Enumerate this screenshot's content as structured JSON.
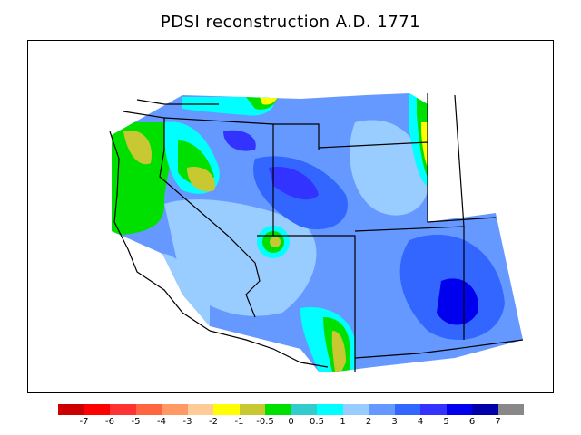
{
  "title": "PDSI reconstruction A.D. 1771",
  "legend": {
    "colors": [
      "#cc0000",
      "#ff0000",
      "#ff3333",
      "#ff6640",
      "#ff9966",
      "#ffcc99",
      "#ffff00",
      "#c8c832",
      "#00e000",
      "#33cccc",
      "#00ffff",
      "#99ccff",
      "#6699ff",
      "#3366ff",
      "#3333ff",
      "#0000ee",
      "#0000aa",
      "#888888"
    ],
    "tick_labels": [
      "-7",
      "-6",
      "-5",
      "-4",
      "-3",
      "-2",
      "-1",
      "-0.5",
      "0",
      "0.5",
      "1",
      "2",
      "3",
      "4",
      "5",
      "6",
      "7"
    ]
  }
}
